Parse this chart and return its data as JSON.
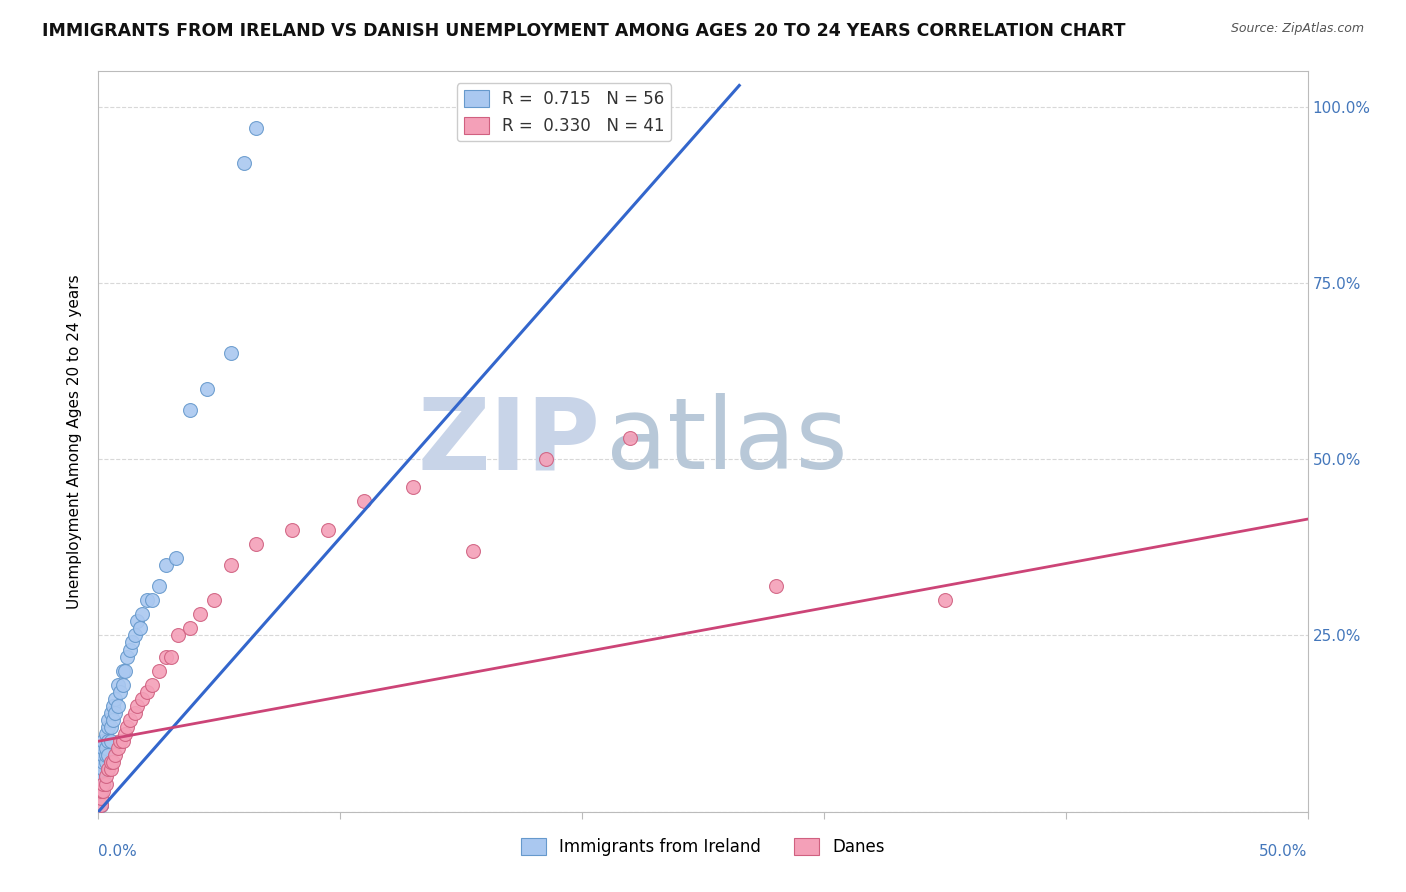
{
  "title": "IMMIGRANTS FROM IRELAND VS DANISH UNEMPLOYMENT AMONG AGES 20 TO 24 YEARS CORRELATION CHART",
  "source": "Source: ZipAtlas.com",
  "xlabel_bottom_left": "0.0%",
  "xlabel_bottom_right": "50.0%",
  "ylabel": "Unemployment Among Ages 20 to 24 years",
  "ylabel_right_ticks": [
    "100.0%",
    "75.0%",
    "50.0%",
    "25.0%"
  ],
  "ylabel_right_vals": [
    1.0,
    0.75,
    0.5,
    0.25
  ],
  "xmin": 0.0,
  "xmax": 0.5,
  "ymin": 0.0,
  "ymax": 1.05,
  "legend_entries": [
    {
      "label": "R =  0.715   N = 56",
      "color": "#a8c8f0"
    },
    {
      "label": "R =  0.330   N = 41",
      "color": "#f4a8b8"
    }
  ],
  "series_ireland": {
    "color": "#aac8f0",
    "edge_color": "#6699cc",
    "x": [
      0.001,
      0.001,
      0.001,
      0.001,
      0.001,
      0.001,
      0.001,
      0.001,
      0.001,
      0.001,
      0.002,
      0.002,
      0.002,
      0.002,
      0.002,
      0.002,
      0.002,
      0.002,
      0.003,
      0.003,
      0.003,
      0.003,
      0.004,
      0.004,
      0.004,
      0.004,
      0.005,
      0.005,
      0.005,
      0.006,
      0.006,
      0.007,
      0.007,
      0.008,
      0.008,
      0.009,
      0.01,
      0.01,
      0.011,
      0.012,
      0.013,
      0.014,
      0.015,
      0.016,
      0.017,
      0.018,
      0.02,
      0.022,
      0.025,
      0.028,
      0.032,
      0.038,
      0.045,
      0.055,
      0.06,
      0.065
    ],
    "y": [
      0.01,
      0.01,
      0.01,
      0.02,
      0.02,
      0.03,
      0.03,
      0.04,
      0.04,
      0.05,
      0.04,
      0.05,
      0.05,
      0.06,
      0.07,
      0.08,
      0.09,
      0.1,
      0.07,
      0.08,
      0.09,
      0.11,
      0.08,
      0.1,
      0.12,
      0.13,
      0.1,
      0.12,
      0.14,
      0.13,
      0.15,
      0.14,
      0.16,
      0.15,
      0.18,
      0.17,
      0.18,
      0.2,
      0.2,
      0.22,
      0.23,
      0.24,
      0.25,
      0.27,
      0.26,
      0.28,
      0.3,
      0.3,
      0.32,
      0.35,
      0.36,
      0.57,
      0.6,
      0.65,
      0.92,
      0.97
    ],
    "trend_x": [
      0.0,
      0.265
    ],
    "trend_y": [
      0.0,
      1.03
    ]
  },
  "series_danes": {
    "color": "#f4a0b8",
    "edge_color": "#d06080",
    "x": [
      0.001,
      0.001,
      0.001,
      0.002,
      0.002,
      0.003,
      0.003,
      0.004,
      0.005,
      0.005,
      0.006,
      0.007,
      0.008,
      0.009,
      0.01,
      0.011,
      0.012,
      0.013,
      0.015,
      0.016,
      0.018,
      0.02,
      0.022,
      0.025,
      0.028,
      0.03,
      0.033,
      0.038,
      0.042,
      0.048,
      0.055,
      0.065,
      0.08,
      0.095,
      0.11,
      0.13,
      0.155,
      0.185,
      0.22,
      0.28,
      0.35
    ],
    "y": [
      0.01,
      0.02,
      0.03,
      0.03,
      0.04,
      0.04,
      0.05,
      0.06,
      0.06,
      0.07,
      0.07,
      0.08,
      0.09,
      0.1,
      0.1,
      0.11,
      0.12,
      0.13,
      0.14,
      0.15,
      0.16,
      0.17,
      0.18,
      0.2,
      0.22,
      0.22,
      0.25,
      0.26,
      0.28,
      0.3,
      0.35,
      0.38,
      0.4,
      0.4,
      0.44,
      0.46,
      0.37,
      0.5,
      0.53,
      0.32,
      0.3
    ],
    "trend_x": [
      0.0,
      0.5
    ],
    "trend_y": [
      0.1,
      0.415
    ]
  },
  "watermark_zip": "ZIP",
  "watermark_atlas": "atlas",
  "watermark_color_zip": "#c8d4e8",
  "watermark_color_atlas": "#b8c8d8",
  "background_color": "#ffffff",
  "grid_color": "#d8d8d8",
  "title_fontsize": 12.5,
  "axis_fontsize": 11,
  "legend_fontsize": 12,
  "marker_size": 100
}
